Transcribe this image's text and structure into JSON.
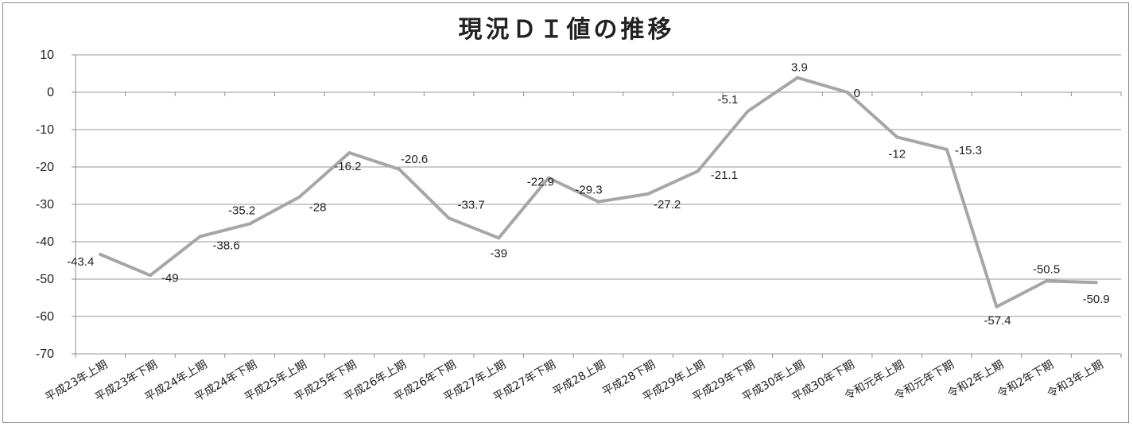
{
  "chart_data": {
    "type": "line",
    "title": "現況ＤＩ値の推移",
    "xlabel": "",
    "ylabel": "",
    "ylim": [
      -70,
      10
    ],
    "yticks": [
      10,
      0,
      -10,
      -20,
      -30,
      -40,
      -50,
      -60,
      -70
    ],
    "grid": true,
    "legend": "none",
    "line_color": "#a6a6a6",
    "categories": [
      "平成23年上期",
      "平成23年下期",
      "平成24年上期",
      "平成24年下期",
      "平成25年上期",
      "平成25年下期",
      "平成26年上期",
      "平成26年下期",
      "平成27年上期",
      "平成27年下期",
      "平成28上期",
      "平成28下期",
      "平成29年上期",
      "平成29年下期",
      "平成30年上期",
      "平成30年下期",
      "令和元年上期",
      "令和元年下期",
      "令和2年上期",
      "令和2年下期",
      "令和3年上期"
    ],
    "series": [
      {
        "values": [
          -43.4,
          -49,
          -38.6,
          -35.2,
          -28,
          -16.2,
          -20.6,
          -33.7,
          -39,
          -22.9,
          -29.3,
          -27.2,
          -21.1,
          -5.1,
          3.9,
          0,
          -12,
          -15.3,
          -57.4,
          -50.5,
          -50.9
        ]
      }
    ]
  }
}
